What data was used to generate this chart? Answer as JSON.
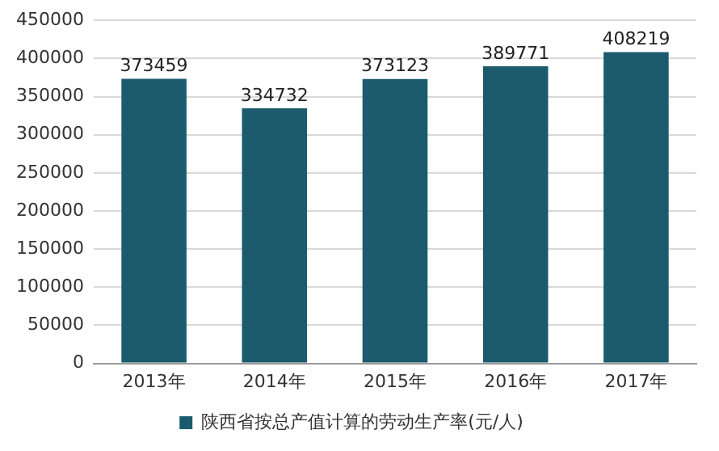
{
  "chart_data": {
    "type": "bar",
    "categories": [
      "2013年",
      "2014年",
      "2015年",
      "2016年",
      "2017年"
    ],
    "series": [
      {
        "name": "陕西省按总产值计算的劳动生产率(元/人)",
        "color": "#1b5b6d",
        "values": [
          373459,
          334732,
          373123,
          389771,
          408219
        ]
      }
    ],
    "ylim": [
      0,
      450000
    ],
    "yticks": [
      0,
      50000,
      100000,
      150000,
      200000,
      250000,
      300000,
      350000,
      400000,
      450000
    ],
    "grid": "y",
    "legend": "bottom",
    "data_labels": true
  }
}
